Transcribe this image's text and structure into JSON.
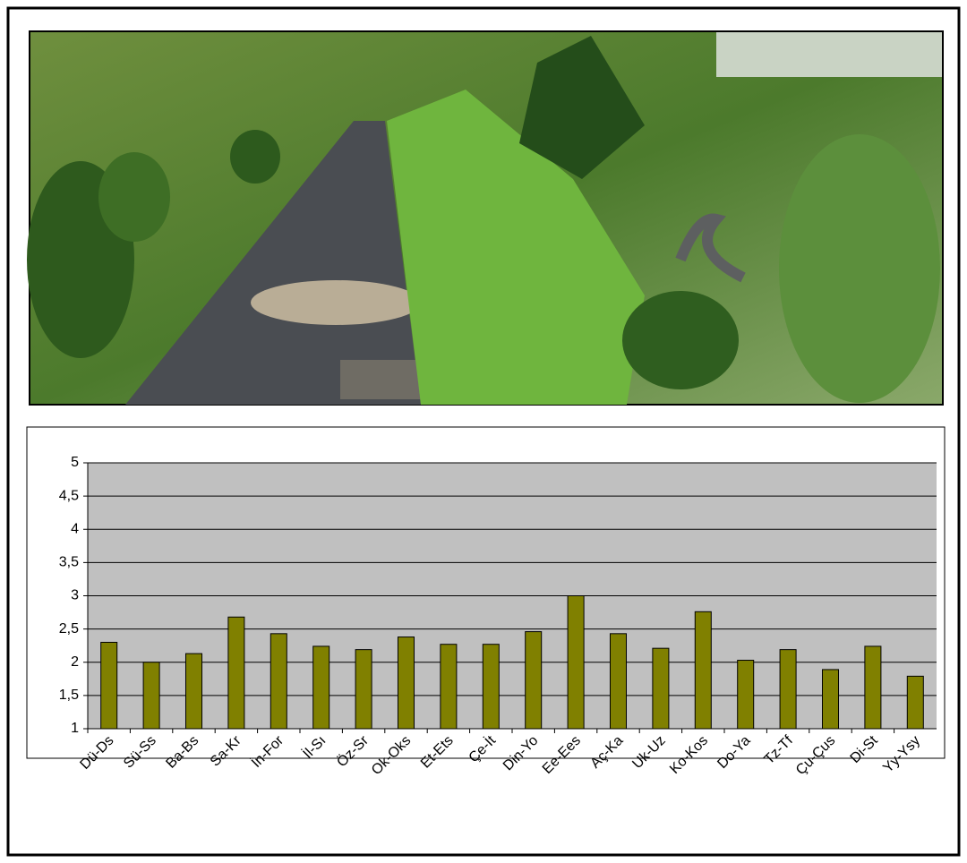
{
  "chart_data": {
    "type": "bar",
    "categories": [
      "Dü-Ds",
      "Sü-Ss",
      "Ba-Bs",
      "Sa-Kr",
      "İn-For",
      "İl-Sı",
      "Öz-Sr",
      "Ok-Oks",
      "Et-Ets",
      "Çe-İt",
      "Din-Yo",
      "Ee-Ees",
      "Aç-Ka",
      "Uk-Uz",
      "Ko-Kos",
      "Do-Ya",
      "Tz-Tf",
      "Çu-Çus",
      "Di-St",
      "Yy-Ysy"
    ],
    "values": [
      2.3,
      2.0,
      2.13,
      2.68,
      2.43,
      2.24,
      2.19,
      2.38,
      2.27,
      2.27,
      2.46,
      3.0,
      2.43,
      2.21,
      2.76,
      2.03,
      2.19,
      1.89,
      2.24,
      1.79
    ],
    "color": "#808000",
    "ylim": [
      1,
      5
    ],
    "yticks": [
      1,
      {
        "value": 1.5,
        "label": "1,5"
      },
      2,
      {
        "value": 2.5,
        "label": "2,5"
      },
      3,
      {
        "value": 3.5,
        "label": "3,5"
      },
      4,
      {
        "value": 4.5,
        "label": "4,5"
      },
      5
    ],
    "grid": true
  }
}
